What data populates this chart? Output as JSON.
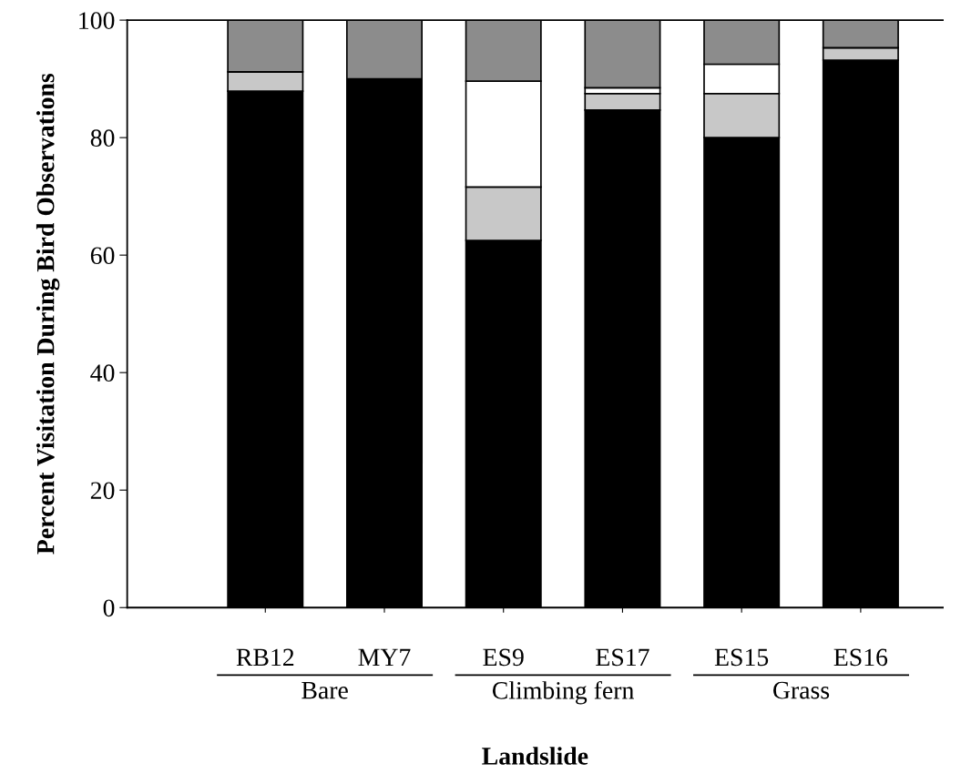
{
  "chart_data": {
    "type": "bar",
    "stacked": true,
    "xlabel": "Landslide",
    "ylabel": "Percent Visitation During Bird Observations",
    "categories": [
      "RB12",
      "MY7",
      "ES9",
      "ES17",
      "ES15",
      "ES16"
    ],
    "series": [
      {
        "color": "#000000",
        "values": [
          87.9,
          90.0,
          62.5,
          84.7,
          80.0,
          93.2
        ]
      },
      {
        "color": "#c8c8c8",
        "values": [
          3.3,
          0,
          9.1,
          2.8,
          7.5,
          2.1
        ]
      },
      {
        "color": "#ffffff",
        "values": [
          0,
          0,
          18.0,
          1.0,
          5.0,
          0
        ]
      },
      {
        "color": "#8c8c8c",
        "values": [
          8.8,
          10.0,
          10.4,
          11.5,
          7.5,
          4.7
        ]
      }
    ],
    "ylim": [
      0,
      100
    ],
    "yticks": [
      0,
      20,
      40,
      60,
      80,
      100
    ],
    "annotations": [
      "Bare",
      "Climbing fern",
      "Grass"
    ],
    "grid": false,
    "legend": false
  }
}
